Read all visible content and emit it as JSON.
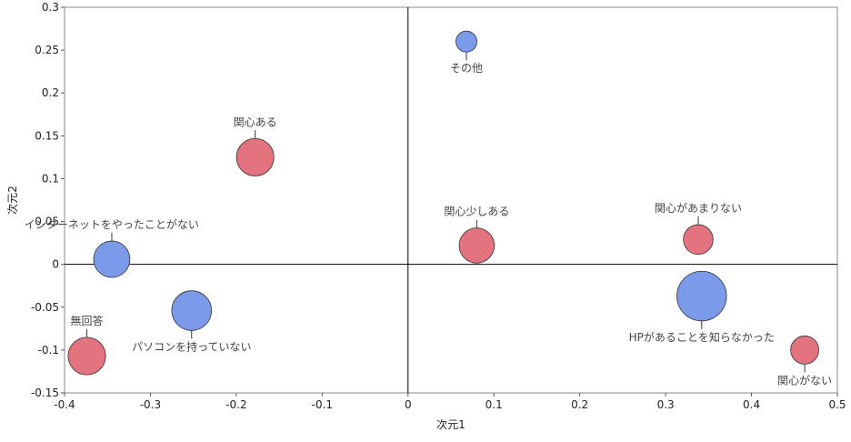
{
  "chart_data": {
    "type": "scatter",
    "xlabel": "次元1",
    "ylabel": "次元2",
    "xlim": [
      -0.4,
      0.5
    ],
    "ylim": [
      -0.15,
      0.3
    ],
    "xticks": [
      "-0.4",
      "-0.3",
      "-0.2",
      "-0.1",
      "0",
      "0.1",
      "0.2",
      "0.3",
      "0.4",
      "0.5"
    ],
    "yticks": [
      "0.3",
      "0.25",
      "0.2",
      "0.15",
      "0.1",
      "0.05",
      "0",
      "-0.05",
      "-0.1",
      "-0.15"
    ],
    "grid": false,
    "colors": {
      "blue": "#7b9bea",
      "red": "#e3737f"
    },
    "points": [
      {
        "label": "その他",
        "x": 0.068,
        "y": 0.26,
        "size": 0.5,
        "color": "blue",
        "label_pos": "below"
      },
      {
        "label": "関心ある",
        "x": -0.178,
        "y": 0.125,
        "size": 1.6,
        "color": "red",
        "label_pos": "above"
      },
      {
        "label": "インターネットをやったことがない",
        "x": -0.345,
        "y": 0.006,
        "size": 1.5,
        "color": "blue",
        "label_pos": "above"
      },
      {
        "label": "関心少しある",
        "x": 0.08,
        "y": 0.022,
        "size": 1.4,
        "color": "red",
        "label_pos": "above"
      },
      {
        "label": "関心があまりない",
        "x": 0.338,
        "y": 0.029,
        "size": 1.0,
        "color": "red",
        "label_pos": "above"
      },
      {
        "label": "パソコンを持っていない",
        "x": -0.252,
        "y": -0.054,
        "size": 1.8,
        "color": "blue",
        "label_pos": "below"
      },
      {
        "label": "無回答",
        "x": -0.374,
        "y": -0.107,
        "size": 1.6,
        "color": "red",
        "label_pos": "above"
      },
      {
        "label": "HPがあることを知らなかった",
        "x": 0.342,
        "y": -0.037,
        "size": 2.8,
        "color": "blue",
        "label_pos": "below"
      },
      {
        "label": "関心がない",
        "x": 0.462,
        "y": -0.1,
        "size": 0.9,
        "color": "red",
        "label_pos": "below"
      }
    ]
  }
}
